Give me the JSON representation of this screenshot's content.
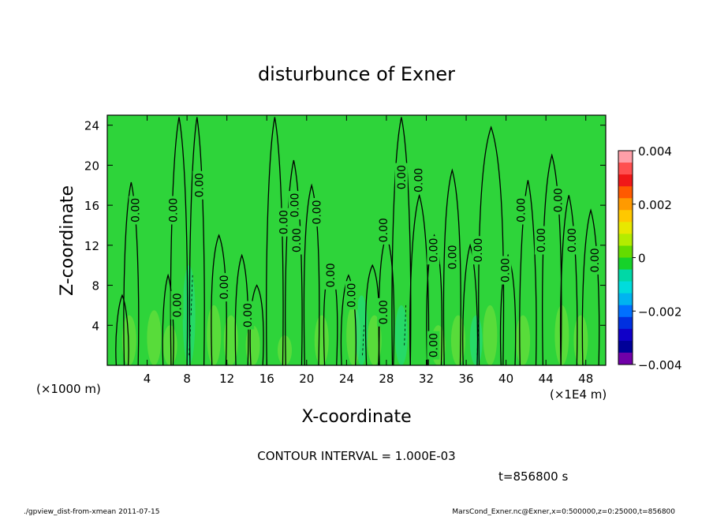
{
  "chart_data": {
    "type": "contour",
    "title": "disturbunce of Exner",
    "xlabel": "X-coordinate",
    "ylabel": "Z-coordinate",
    "x_unit_left": "(×1000 m)",
    "x_unit_right": "(×1E4 m)",
    "xlim": [
      0,
      50
    ],
    "ylim": [
      0,
      25
    ],
    "x_ticks": [
      "4",
      "8",
      "12",
      "16",
      "20",
      "24",
      "28",
      "32",
      "36",
      "40",
      "44",
      "48"
    ],
    "x_tick_values": [
      4,
      8,
      12,
      16,
      20,
      24,
      28,
      32,
      36,
      40,
      44,
      48
    ],
    "y_ticks": [
      "4",
      "8",
      "12",
      "16",
      "20",
      "24"
    ],
    "y_tick_values": [
      4,
      8,
      12,
      16,
      20,
      24
    ],
    "contour_interval_text": "CONTOUR INTERVAL = 1.000E-03",
    "time_text": "t=856800 s",
    "contour_labels": [
      "0.00",
      "0.00",
      "0.00",
      "0.00",
      "0.00",
      "0.00",
      "0.00",
      "0.00",
      "0.00",
      "0.00",
      "0.00",
      "0.00",
      "0.00",
      "0.00",
      "0.00",
      "0.00",
      "0.00",
      "0.00",
      "0.00",
      "0.00",
      "0.00",
      "0.00",
      "0.00",
      "0.00",
      "0.00",
      "0.00"
    ],
    "colorbar": {
      "range": [
        -0.004,
        0.004
      ],
      "tick_labels": [
        "0.004",
        "0.002",
        "0",
        "−0.002",
        "−0.004"
      ],
      "tick_values": [
        0.004,
        0.002,
        0,
        -0.002,
        -0.004
      ],
      "colors": [
        "#ff9fa8",
        "#ff5050",
        "#f01818",
        "#ff5a00",
        "#ff9a00",
        "#ffc800",
        "#e8e800",
        "#b4ec00",
        "#64dc00",
        "#16d22a",
        "#00d8a6",
        "#00dcdc",
        "#00b4f0",
        "#0070ff",
        "#0030e0",
        "#1000c8",
        "#000098",
        "#7000a8"
      ]
    },
    "field_color": "#2ed43a"
  },
  "footer": {
    "left": "./gpview_dist-from-xmean  2011-07-15",
    "right": "MarsCond_Exner.nc@Exner,x=0:500000,z=0:25000,t=856800"
  }
}
